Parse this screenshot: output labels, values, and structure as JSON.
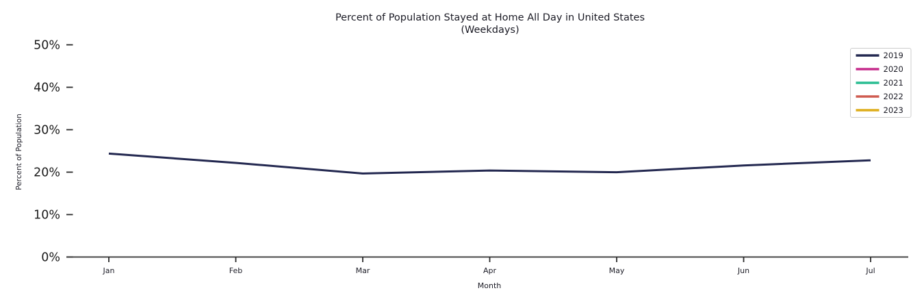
{
  "chart_data": {
    "type": "line",
    "title": "Percent of Population Stayed at Home All Day in United States",
    "subtitle": "(Weekdays)",
    "xlabel": "Month",
    "ylabel": "Percent of Population",
    "categories": [
      "Jan",
      "Feb",
      "Mar",
      "Apr",
      "May",
      "Jun",
      "Jul"
    ],
    "ytick_labels": [
      "0%",
      "10%",
      "20%",
      "30%",
      "40%",
      "50%"
    ],
    "ytick_values": [
      0,
      10,
      20,
      30,
      40,
      50
    ],
    "ylim": [
      0,
      51.5
    ],
    "grid": false,
    "legend_position": "upper right",
    "legend_entries": [
      "2019",
      "2020",
      "2021",
      "2022",
      "2023"
    ],
    "series": [
      {
        "name": "2019",
        "color": "#232850",
        "values": [
          24.3,
          22.1,
          19.6,
          20.3,
          19.9,
          21.5,
          22.7
        ]
      },
      {
        "name": "2020",
        "color": "#c62d8c",
        "values": []
      },
      {
        "name": "2021",
        "color": "#2abd92",
        "values": []
      },
      {
        "name": "2022",
        "color": "#cf5c50",
        "values": []
      },
      {
        "name": "2023",
        "color": "#ddad1c",
        "values": []
      }
    ],
    "axis_color": "#2b2b2b",
    "text_color": "#1a1a24",
    "legend_border_color": "#cccccc"
  }
}
